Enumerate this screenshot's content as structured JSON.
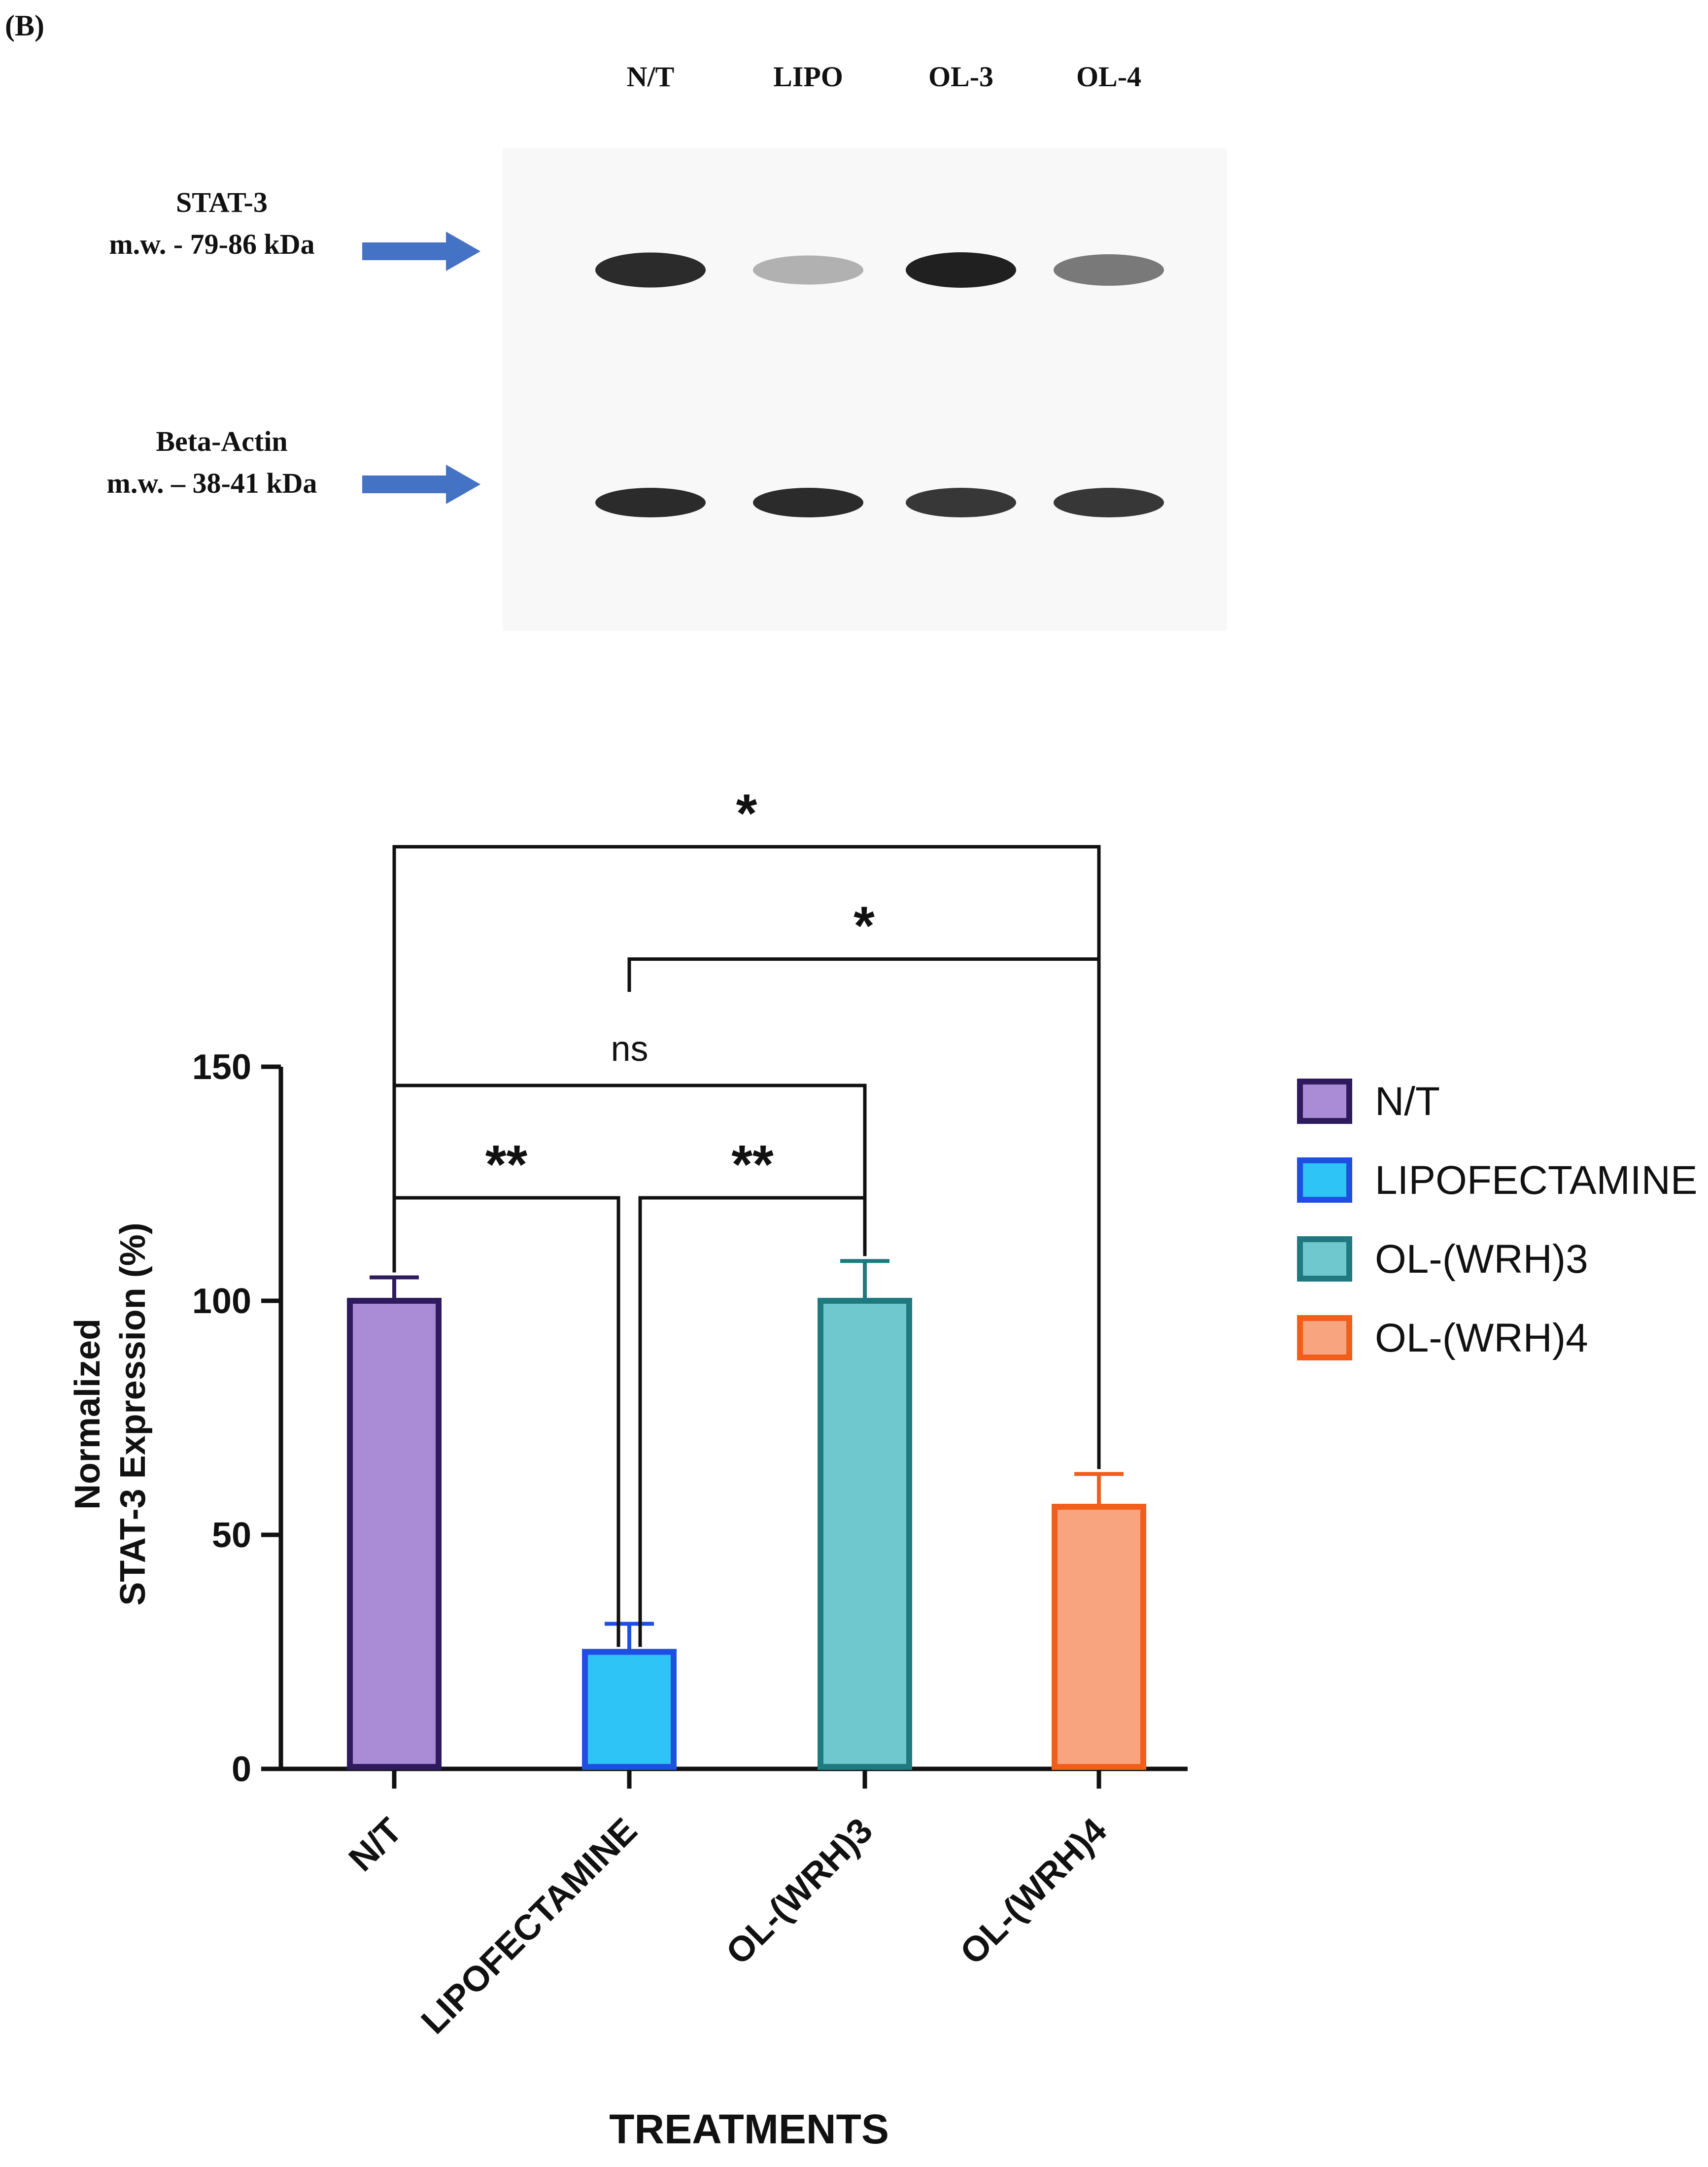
{
  "panel_label": "(B)",
  "blot": {
    "lanes": [
      "N/T",
      "LIPO",
      "OL-3",
      "OL-4"
    ],
    "bands": [
      {
        "name": "STAT-3",
        "mw": "m.w. - 79-86 kDa",
        "intensity": [
          0.95,
          0.35,
          1.0,
          0.6
        ]
      },
      {
        "name": "Beta-Actin",
        "mw": "m.w. – 38-41 kDa",
        "intensity": [
          0.95,
          0.95,
          0.9,
          0.9
        ]
      }
    ],
    "arrow_color": "#4472C4"
  },
  "chart_data": {
    "type": "bar",
    "categories": [
      "N/T",
      "LIPOFECTAMINE",
      "OL-(WRH)3",
      "OL-(WRH)4"
    ],
    "values": [
      100,
      25,
      100,
      56
    ],
    "errors": [
      5,
      6,
      8.5,
      7
    ],
    "xlabel": "TREATMENTS",
    "ylabel_lines": [
      "Normalized",
      "STAT-3 Expression (%)"
    ],
    "ylim": [
      0,
      150
    ],
    "yticks": [
      0,
      50,
      100,
      150
    ],
    "grid": false,
    "legend": {
      "position": "right",
      "entries": [
        "N/T",
        "LIPOFECTAMINE",
        "OL-(WRH)3",
        "OL-(WRH)4"
      ]
    },
    "colors": {
      "fill": [
        "#A98BD6",
        "#2EC4F5",
        "#6FC8CD",
        "#F8A47F"
      ],
      "stroke": [
        "#2E1B5E",
        "#1F4FE0",
        "#1F7A80",
        "#F25E1A"
      ]
    },
    "significance": [
      {
        "from": 0,
        "to": 3,
        "label": "*",
        "height": 197
      },
      {
        "from": 1,
        "to": 3,
        "label": "*",
        "height": 173
      },
      {
        "from": 0,
        "to": 2,
        "label": "ns",
        "height": 146
      },
      {
        "from": 0,
        "to": 1,
        "label": "**",
        "height": 122
      },
      {
        "from": 1,
        "to": 2,
        "label": "**",
        "height": 122
      }
    ]
  }
}
